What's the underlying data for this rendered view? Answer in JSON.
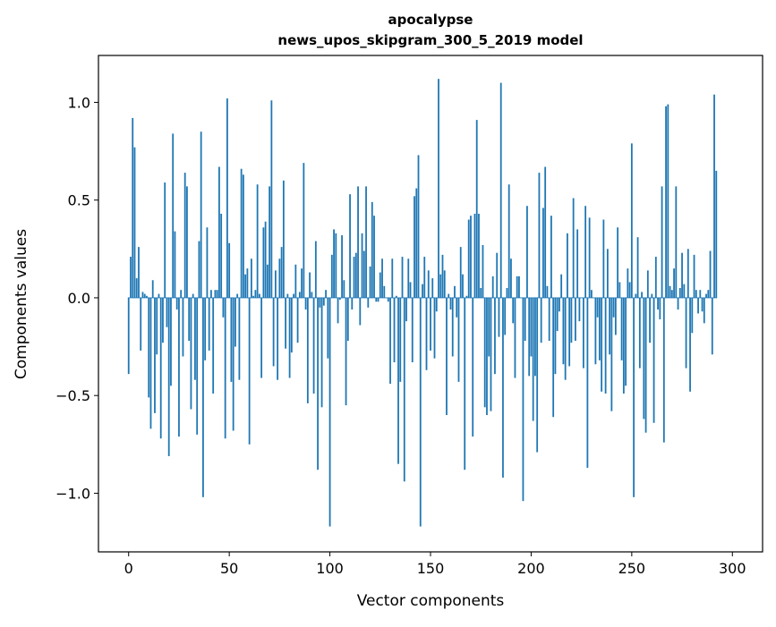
{
  "chart_data": {
    "type": "bar",
    "title": "apocalypse",
    "subtitle": "news_upos_skipgram_300_5_2019 model",
    "xlabel": "Vector components",
    "ylabel": "Components values",
    "xlim": [
      -15,
      315
    ],
    "ylim": [
      -1.3,
      1.24
    ],
    "xticks": [
      0,
      50,
      100,
      150,
      200,
      250,
      300
    ],
    "yticks": [
      -1.0,
      -0.5,
      0.0,
      0.5,
      1.0
    ],
    "xtick_labels": [
      "0",
      "50",
      "100",
      "150",
      "200",
      "250",
      "300"
    ],
    "ytick_labels": [
      "−1.0",
      "−0.5",
      "0.0",
      "0.5",
      "1.0"
    ],
    "grid": false,
    "bar_color": "#1f77b4",
    "values": [
      -0.39,
      0.21,
      0.92,
      0.77,
      0.1,
      0.26,
      -0.27,
      0.03,
      0.02,
      0.01,
      -0.51,
      -0.67,
      0.09,
      -0.59,
      -0.29,
      0.02,
      -0.72,
      -0.23,
      0.59,
      -0.15,
      -0.81,
      -0.45,
      0.84,
      0.34,
      -0.06,
      -0.71,
      0.04,
      -0.3,
      0.64,
      0.57,
      -0.22,
      -0.57,
      0.02,
      -0.42,
      -0.7,
      0.29,
      0.85,
      -1.02,
      -0.32,
      0.36,
      -0.27,
      0.04,
      -0.49,
      0.04,
      0.04,
      0.67,
      0.43,
      -0.1,
      -0.72,
      1.02,
      0.28,
      -0.43,
      -0.68,
      -0.25,
      0.02,
      -0.42,
      0.66,
      0.63,
      0.12,
      0.15,
      -0.75,
      0.2,
      0.01,
      0.04,
      0.58,
      0.02,
      -0.41,
      0.36,
      0.39,
      0.17,
      0.57,
      1.01,
      -0.35,
      0.14,
      -0.42,
      0.2,
      0.26,
      0.6,
      -0.26,
      0.02,
      -0.41,
      -0.28,
      0.02,
      0.17,
      -0.23,
      0.03,
      0.15,
      0.69,
      -0.06,
      -0.54,
      0.13,
      0.03,
      -0.49,
      0.29,
      -0.88,
      -0.05,
      -0.56,
      -0.04,
      0.04,
      -0.31,
      -1.17,
      0.22,
      0.35,
      0.33,
      -0.13,
      -0.01,
      0.32,
      0.09,
      -0.55,
      -0.22,
      0.53,
      -0.06,
      0.21,
      0.23,
      0.57,
      -0.14,
      0.33,
      0.24,
      0.57,
      -0.05,
      0.16,
      0.49,
      0.42,
      -0.02,
      -0.02,
      0.13,
      0.2,
      0.06,
      0.0,
      -0.02,
      -0.44,
      0.2,
      -0.33,
      0.01,
      -0.85,
      -0.43,
      0.21,
      -0.94,
      -0.12,
      0.2,
      0.08,
      -0.33,
      0.52,
      0.56,
      0.73,
      -1.17,
      0.07,
      0.21,
      -0.37,
      0.14,
      -0.27,
      0.1,
      -0.31,
      -0.07,
      1.12,
      0.12,
      0.22,
      0.14,
      -0.6,
      0.02,
      -0.06,
      -0.3,
      0.06,
      -0.1,
      -0.43,
      0.26,
      0.12,
      -0.88,
      0.01,
      0.4,
      0.42,
      -0.71,
      0.43,
      0.91,
      0.43,
      0.05,
      0.27,
      -0.56,
      -0.6,
      -0.3,
      -0.58,
      0.11,
      -0.39,
      0.23,
      -0.2,
      1.1,
      -0.92,
      -0.19,
      0.05,
      0.58,
      0.2,
      -0.13,
      -0.41,
      0.11,
      0.11,
      0.0,
      -1.04,
      -0.22,
      0.47,
      -0.4,
      -0.3,
      -0.63,
      -0.4,
      -0.79,
      0.64,
      -0.23,
      0.46,
      0.67,
      0.06,
      -0.22,
      0.42,
      -0.61,
      -0.39,
      -0.17,
      -0.07,
      0.12,
      -0.34,
      -0.42,
      0.33,
      -0.35,
      -0.23,
      0.51,
      -0.22,
      0.35,
      -0.12,
      0.0,
      -0.36,
      0.47,
      -0.87,
      0.41,
      0.04,
      0.0,
      -0.34,
      -0.1,
      -0.32,
      -0.48,
      0.4,
      -0.49,
      0.25,
      -0.29,
      -0.58,
      -0.1,
      -0.19,
      0.36,
      0.08,
      -0.32,
      -0.49,
      -0.45,
      0.15,
      0.08,
      0.79,
      -1.02,
      0.02,
      0.31,
      -0.36,
      0.03,
      -0.62,
      -0.69,
      0.14,
      -0.23,
      0.02,
      -0.64,
      0.21,
      -0.06,
      -0.11,
      0.57,
      -0.74,
      0.98,
      0.99,
      0.06,
      0.04,
      0.15,
      0.57,
      -0.06,
      0.05,
      0.23,
      0.07,
      -0.36,
      0.25,
      -0.48,
      -0.18,
      0.22,
      0.04,
      -0.08,
      0.04,
      -0.07,
      -0.13,
      0.02,
      0.04,
      0.24,
      -0.29,
      1.04,
      0.65
    ]
  }
}
